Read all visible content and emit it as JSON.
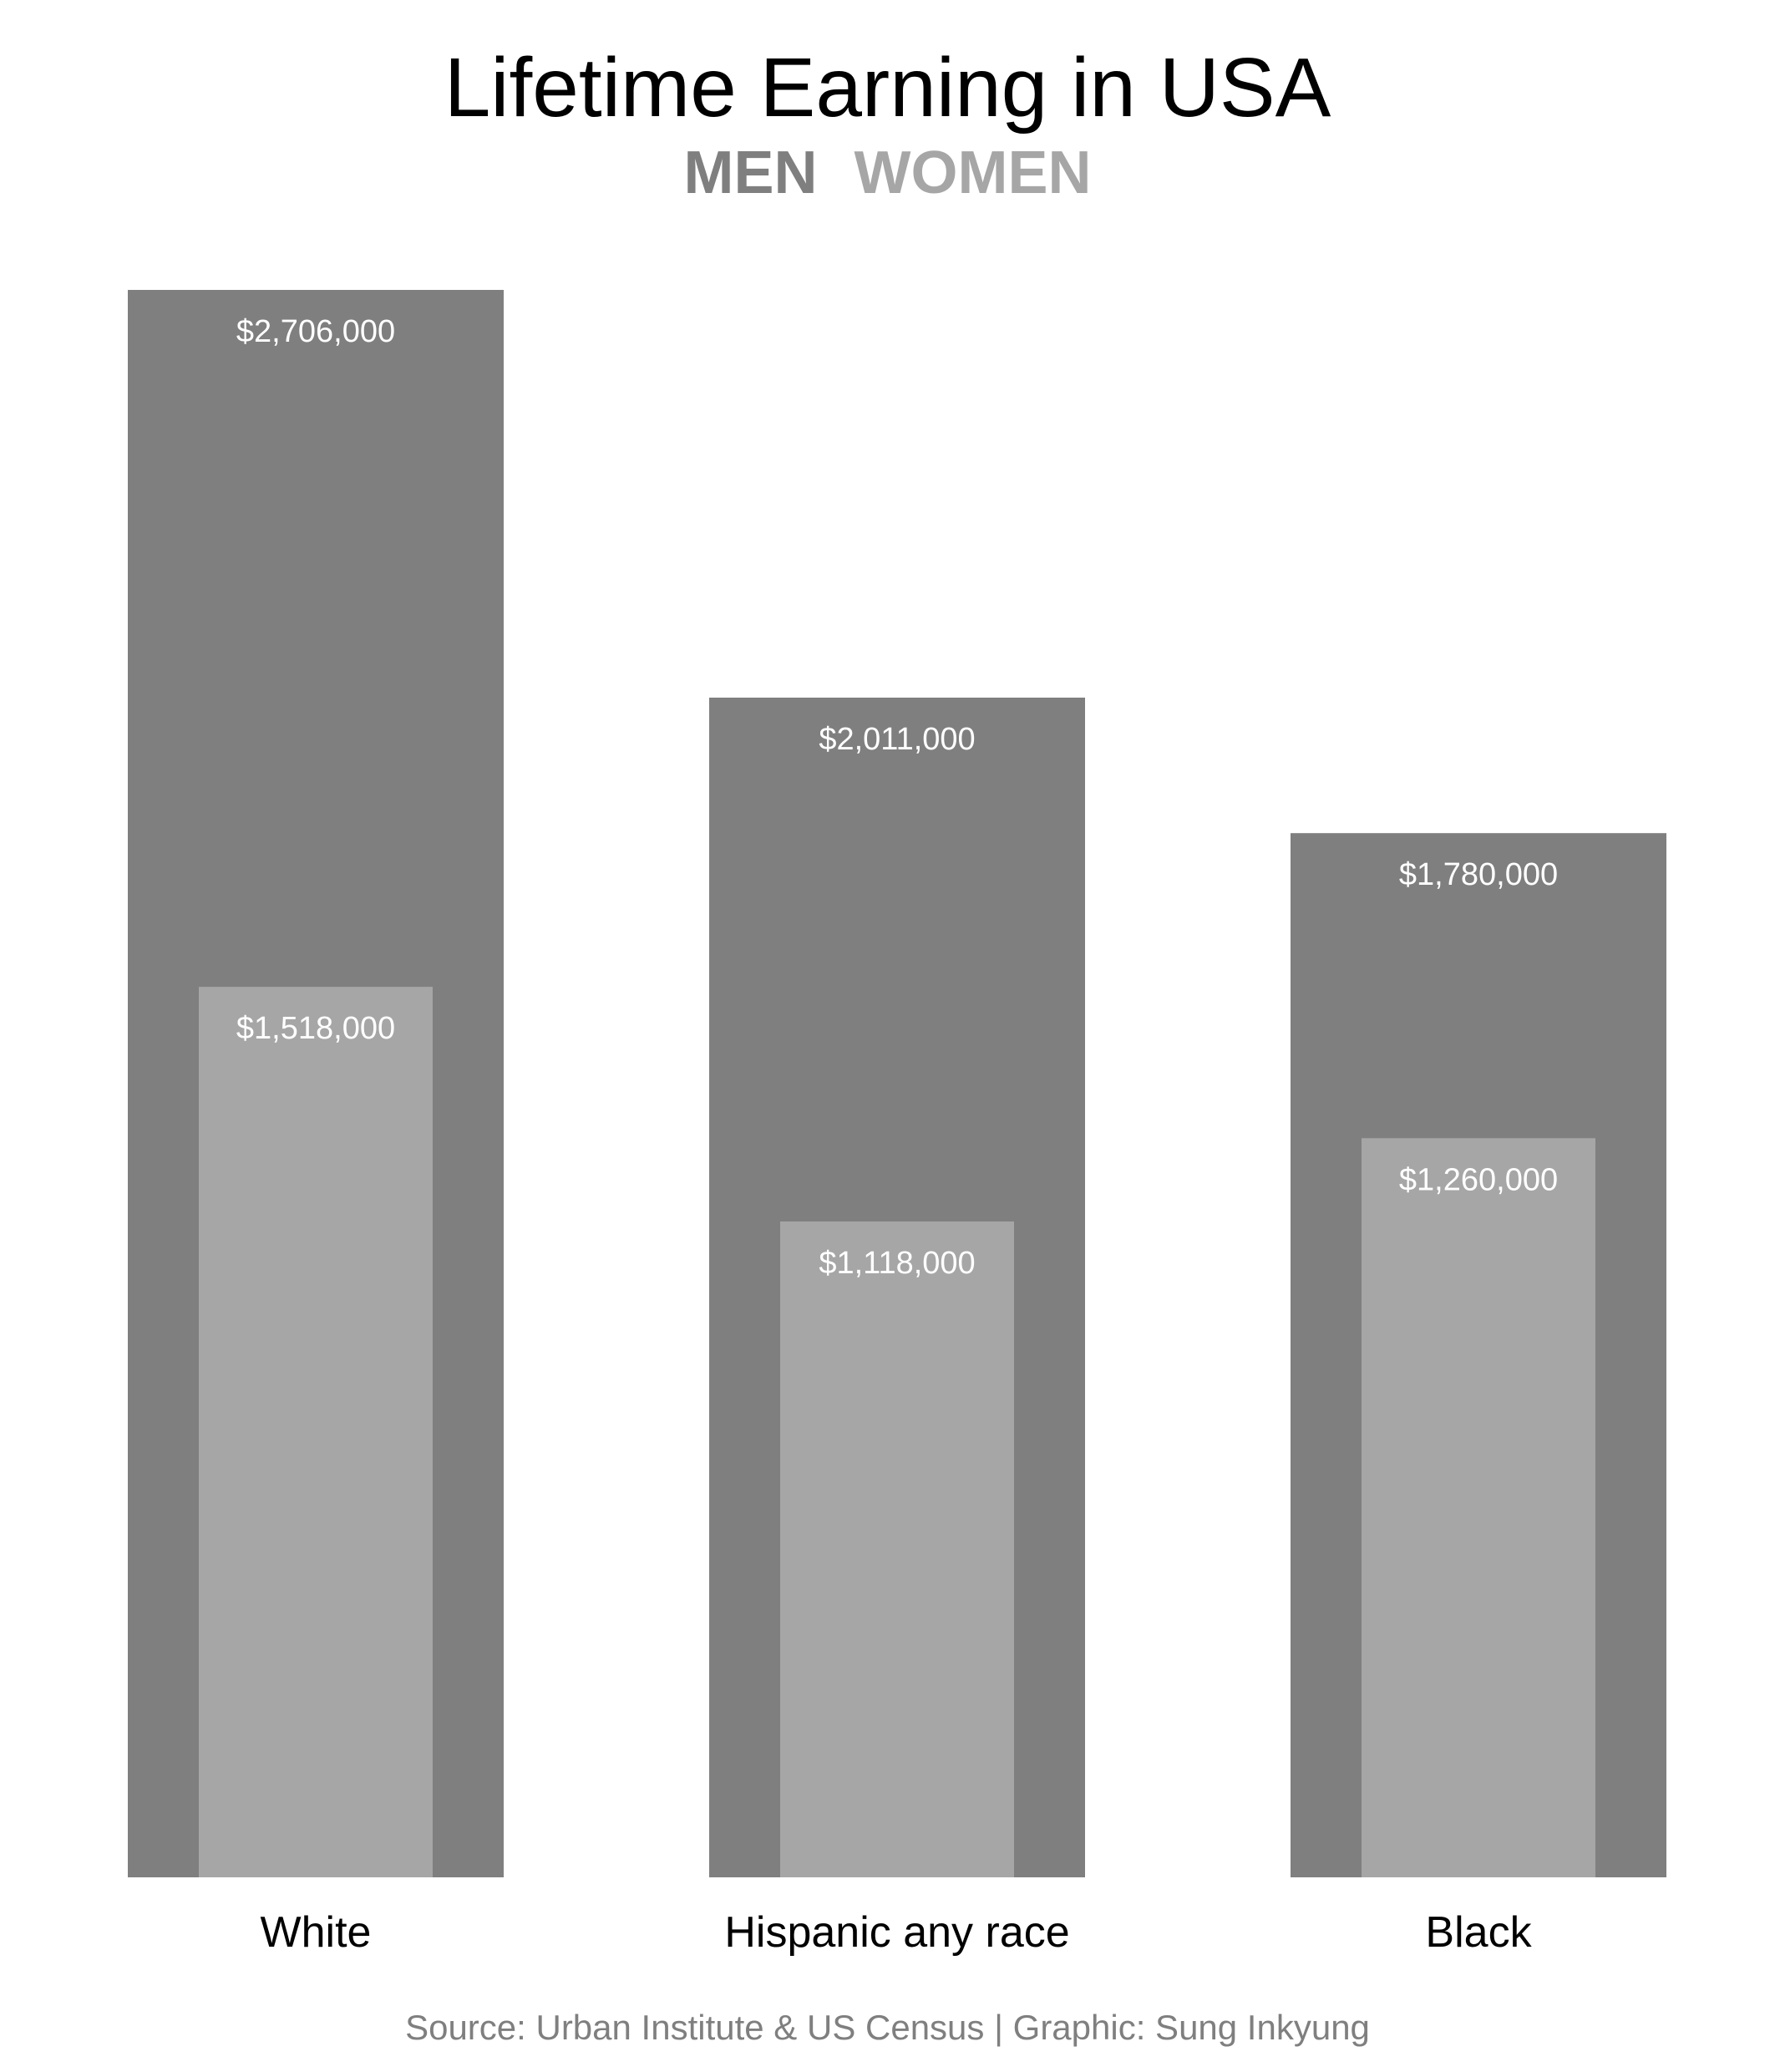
{
  "title": "Lifetime Earning in USA",
  "legend": {
    "men_label": "MEN",
    "women_label": "WOMEN"
  },
  "source": "Source: Urban Institute & US Census | Graphic: Sung Inkyung",
  "colors": {
    "men": "#7f7f7f",
    "women": "#a6a6a6",
    "bar_label": "#ffffff",
    "category_label": "#000000",
    "background": "#ffffff"
  },
  "chart_data": {
    "type": "bar",
    "title": "Lifetime Earning in USA",
    "categories": [
      "White",
      "Hispanic any race",
      "Black"
    ],
    "series": [
      {
        "name": "MEN",
        "values": [
          2706000,
          2011000,
          1780000
        ],
        "labels": [
          "$2,706,000",
          "$2,011,000",
          "$1,780,000"
        ]
      },
      {
        "name": "WOMEN",
        "values": [
          1518000,
          1118000,
          1260000
        ],
        "labels": [
          "$1,518,000",
          "$1,118,000",
          "$1,260,000"
        ]
      }
    ],
    "xlabel": "",
    "ylabel": "",
    "ylim": [
      0,
      2706000
    ],
    "grid": false,
    "legend_position": "top-center"
  }
}
